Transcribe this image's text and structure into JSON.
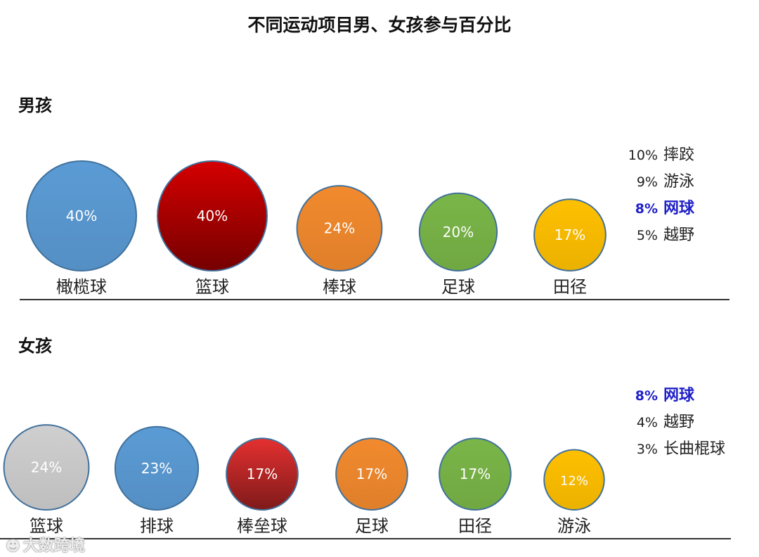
{
  "chart_data": {
    "type": "bubble",
    "title": "不同运动项目男、女孩参与百分比",
    "groups": [
      {
        "name": "男孩",
        "items": [
          {
            "label": "橄榄球",
            "value": 40,
            "text": "40%",
            "color": "#5b9bd5"
          },
          {
            "label": "篮球",
            "value": 40,
            "text": "40%",
            "color": "#d50000"
          },
          {
            "label": "棒球",
            "value": 24,
            "text": "24%",
            "color": "#f28a2e"
          },
          {
            "label": "足球",
            "value": 20,
            "text": "20%",
            "color": "#7ab648"
          },
          {
            "label": "田径",
            "value": 17,
            "text": "17%",
            "color": "#ffc000"
          }
        ],
        "others": [
          {
            "pct": "10%",
            "label": "摔跤",
            "highlight": false
          },
          {
            "pct": "9%",
            "label": "游泳",
            "highlight": false
          },
          {
            "pct": "8%",
            "label": "网球",
            "highlight": true
          },
          {
            "pct": "5%",
            "label": "越野",
            "highlight": false
          }
        ]
      },
      {
        "name": "女孩",
        "items": [
          {
            "label": "篮球",
            "value": 24,
            "text": "24%",
            "color": "#d0cfd0"
          },
          {
            "label": "排球",
            "value": 23,
            "text": "23%",
            "color": "#5b9bd5"
          },
          {
            "label": "棒垒球",
            "value": 17,
            "text": "17%",
            "color": "#e53030"
          },
          {
            "label": "足球",
            "value": 17,
            "text": "17%",
            "color": "#f28a2e"
          },
          {
            "label": "田径",
            "value": 17,
            "text": "17%",
            "color": "#7ab648"
          },
          {
            "label": "游泳",
            "value": 12,
            "text": "12%",
            "color": "#ffc000"
          }
        ],
        "others": [
          {
            "pct": "8%",
            "label": "网球",
            "highlight": true
          },
          {
            "pct": "4%",
            "label": "越野",
            "highlight": false
          },
          {
            "pct": "3%",
            "label": "长曲棍球",
            "highlight": false
          }
        ]
      }
    ]
  },
  "watermark": {
    "icon": "weibo-icon",
    "text": "大数跨境"
  }
}
